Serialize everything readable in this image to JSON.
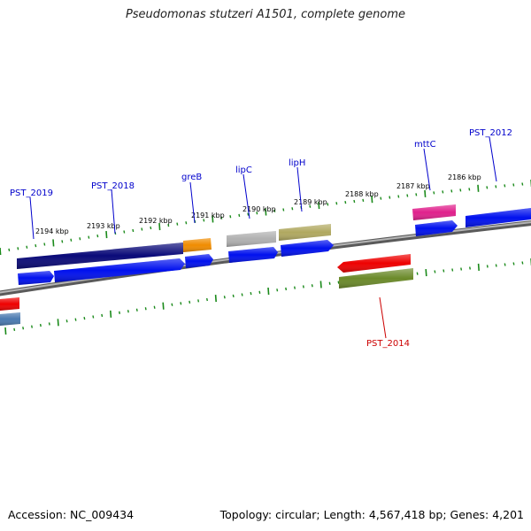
{
  "title": "Pseudomonas stutzeri A1501, complete genome",
  "footer": {
    "accession": "Accession: NC_009434",
    "topology": "Topology: circular; Length: 4,567,418 bp; Genes: 4,201"
  },
  "colors": {
    "backbone": "#888888",
    "ticks": "#1a8a1a",
    "gene_label_default": "#0000cc",
    "gene_label_reverse": "#cc0000",
    "gene_forward": "#0010ee",
    "gene_reverse": "#ee0000",
    "navy": "#0a0a78",
    "orange": "#f08c00",
    "gray": "#b0b0b0",
    "khaki": "#b0a860",
    "magenta": "#e0208c",
    "olive": "#6b8a2a",
    "steelblue": "#4a7ab0"
  },
  "scale_labels": [
    "2194 kbp",
    "2193 kbp",
    "2192 kbp",
    "2191 kbp",
    "2190 kbp",
    "2189 kbp",
    "2188 kbp",
    "2187 kbp",
    "2186 kbp"
  ],
  "gene_labels": [
    {
      "name": "PST_2019",
      "strand": "forward"
    },
    {
      "name": "PST_2018",
      "strand": "forward"
    },
    {
      "name": "greB",
      "strand": "forward"
    },
    {
      "name": "lipC",
      "strand": "forward"
    },
    {
      "name": "lipH",
      "strand": "forward"
    },
    {
      "name": "mttC",
      "strand": "forward"
    },
    {
      "name": "PST_2012",
      "strand": "forward"
    },
    {
      "name": "PST_2014",
      "strand": "reverse"
    }
  ]
}
